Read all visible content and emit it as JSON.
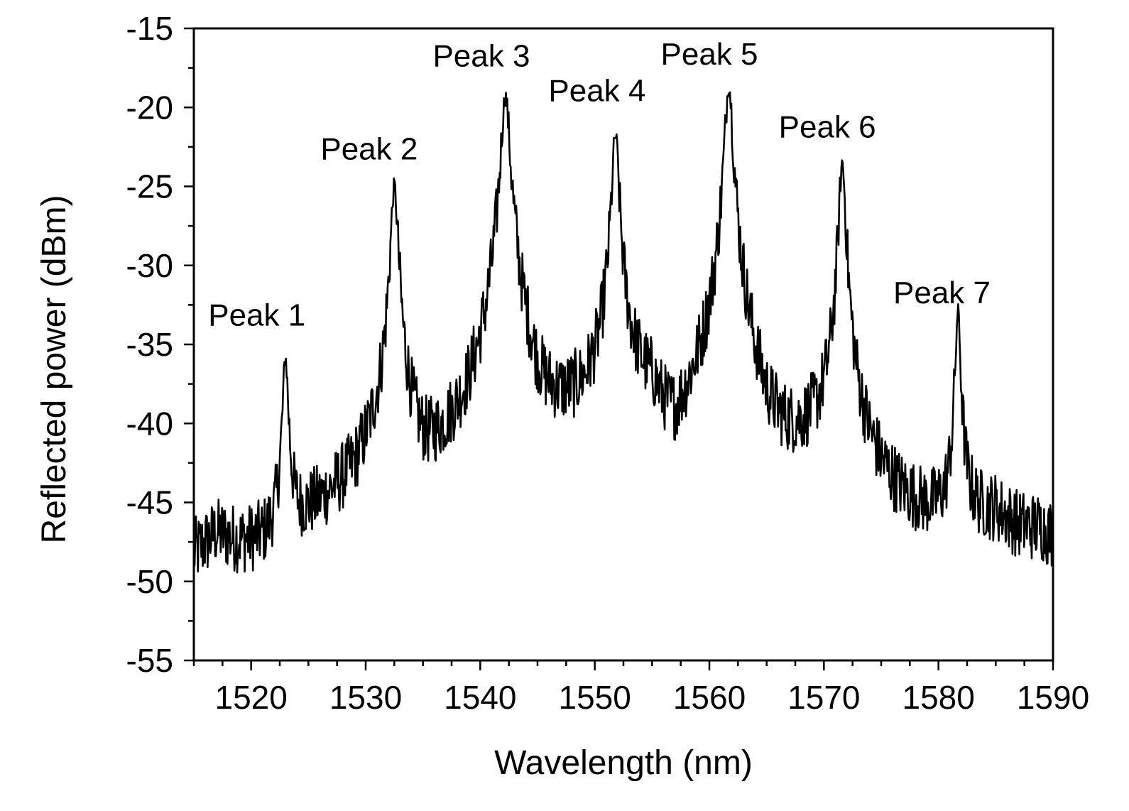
{
  "chart_data": {
    "type": "line",
    "title": "",
    "xlabel": "Wavelength (nm)",
    "ylabel": "Reflected power (dBm)",
    "xlim": [
      1515,
      1590
    ],
    "ylim": [
      -55,
      -15
    ],
    "xticks": [
      1520,
      1530,
      1540,
      1550,
      1560,
      1570,
      1580,
      1590
    ],
    "yticks": [
      -15,
      -20,
      -25,
      -30,
      -35,
      -40,
      -45,
      -50,
      -55
    ],
    "grid": false,
    "legend": "none",
    "line_color": "#000000",
    "baseline": [
      [
        1515,
        -49.5
      ],
      [
        1517,
        -48.0
      ],
      [
        1519,
        -49.0
      ],
      [
        1521,
        -49.5
      ],
      [
        1523,
        -49.0
      ],
      [
        1525,
        -47.5
      ],
      [
        1527,
        -46.5
      ],
      [
        1529,
        -45.5
      ],
      [
        1531,
        -43.0
      ],
      [
        1533,
        -43.0
      ],
      [
        1535,
        -46.0
      ],
      [
        1537,
        -44.0
      ],
      [
        1539,
        -42.5
      ],
      [
        1541,
        -39.0
      ],
      [
        1543,
        -37.0
      ],
      [
        1545,
        -42.0
      ],
      [
        1547,
        -41.0
      ],
      [
        1549,
        -40.0
      ],
      [
        1551,
        -38.5
      ],
      [
        1553,
        -38.0
      ],
      [
        1555,
        -39.0
      ],
      [
        1557,
        -44.0
      ],
      [
        1559,
        -40.5
      ],
      [
        1561,
        -38.0
      ],
      [
        1563,
        -39.0
      ],
      [
        1565,
        -45.0
      ],
      [
        1567,
        -44.0
      ],
      [
        1569,
        -42.5
      ],
      [
        1571,
        -42.0
      ],
      [
        1573,
        -44.0
      ],
      [
        1575,
        -46.0
      ],
      [
        1577,
        -47.0
      ],
      [
        1579,
        -47.5
      ],
      [
        1581,
        -47.5
      ],
      [
        1583,
        -47.0
      ],
      [
        1585,
        -46.5
      ],
      [
        1587,
        -47.5
      ],
      [
        1589,
        -47.5
      ],
      [
        1590,
        -48.0
      ]
    ],
    "peaks": [
      {
        "label": "Peak 1",
        "x": 1523.0,
        "y": -36.0,
        "width": 0.22
      },
      {
        "label": "Peak 2",
        "x": 1532.5,
        "y": -25.0,
        "width": 0.28
      },
      {
        "label": "Peak 3",
        "x": 1542.2,
        "y": -19.3,
        "width": 0.35
      },
      {
        "label": "Peak 4",
        "x": 1551.8,
        "y": -21.8,
        "width": 0.28
      },
      {
        "label": "Peak 5",
        "x": 1561.7,
        "y": -18.6,
        "width": 0.32
      },
      {
        "label": "Peak 6",
        "x": 1571.6,
        "y": -23.5,
        "width": 0.26
      },
      {
        "label": "Peak 7",
        "x": 1581.7,
        "y": -33.0,
        "width": 0.2
      }
    ],
    "noise_amplitude_db": 2.2,
    "annotations": [
      {
        "text": "Peak 1",
        "x": 1520.5,
        "y": -33.8
      },
      {
        "text": "Peak 2",
        "x": 1530.3,
        "y": -23.3
      },
      {
        "text": "Peak 3",
        "x": 1540.1,
        "y": -17.4
      },
      {
        "text": "Peak 4",
        "x": 1550.2,
        "y": -19.6
      },
      {
        "text": "Peak 5",
        "x": 1560.0,
        "y": -17.3
      },
      {
        "text": "Peak 6",
        "x": 1570.3,
        "y": -21.9
      },
      {
        "text": "Peak 7",
        "x": 1580.3,
        "y": -32.4
      }
    ]
  }
}
